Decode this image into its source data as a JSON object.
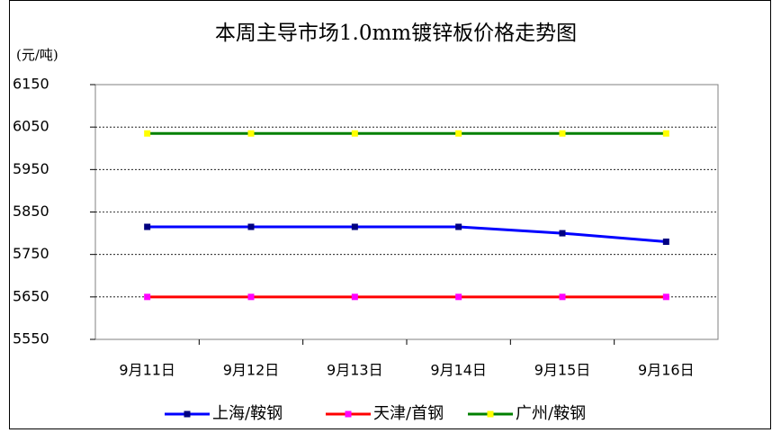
{
  "chart_data": {
    "type": "line",
    "title": "本周主导市场1.0mm镀锌板价格走势图",
    "y_unit": "(元/吨)",
    "categories": [
      "9月11日",
      "9月12日",
      "9月13日",
      "9月14日",
      "9月15日",
      "9月16日"
    ],
    "series": [
      {
        "name": "上海/鞍钢",
        "color": "#0000ff",
        "marker_color": "#000080",
        "values": [
          5815,
          5815,
          5815,
          5815,
          5800,
          5780
        ]
      },
      {
        "name": "天津/首钢",
        "color": "#ff0000",
        "marker_color": "#ff00ff",
        "values": [
          5650,
          5650,
          5650,
          5650,
          5650,
          5650
        ]
      },
      {
        "name": "广州/鞍钢",
        "color": "#008000",
        "marker_color": "#ffff00",
        "values": [
          6035,
          6035,
          6035,
          6035,
          6035,
          6035
        ]
      }
    ],
    "ylim": [
      5550,
      6150
    ],
    "yticks": [
      5550,
      5650,
      5750,
      5850,
      5950,
      6050,
      6150
    ],
    "grid": true,
    "legend": "bottom"
  }
}
